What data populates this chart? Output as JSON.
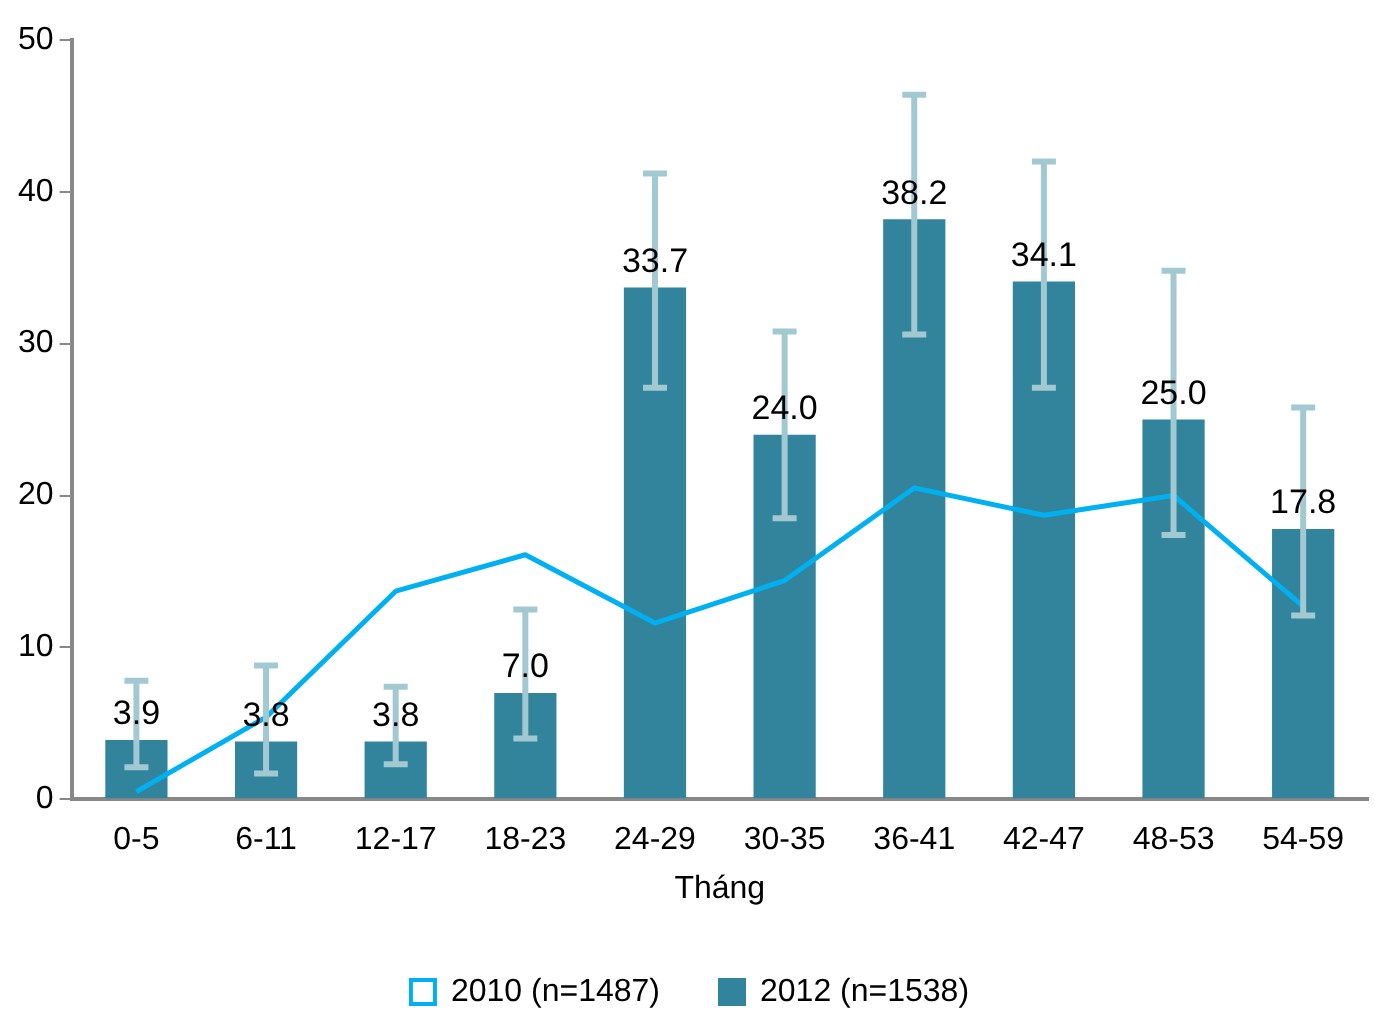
{
  "chart_data": {
    "type": "bar",
    "xlabel": "Tháng",
    "categories": [
      "0-5",
      "6-11",
      "12-17",
      "18-23",
      "24-29",
      "30-35",
      "36-41",
      "42-47",
      "48-53",
      "54-59"
    ],
    "series": [
      {
        "name": "2010 (n=1487)",
        "type": "line",
        "color": "#00b0f0",
        "values": [
          0.5,
          5.4,
          13.7,
          16.1,
          11.6,
          14.4,
          20.5,
          18.7,
          20.0,
          12.7
        ]
      },
      {
        "name": "2012 (n=1538)",
        "color": "#31849b",
        "values": [
          3.9,
          3.8,
          3.8,
          7.0,
          33.7,
          24.0,
          38.2,
          34.1,
          25.0,
          17.8
        ],
        "value_labels": [
          "3.9",
          "3.8",
          "3.8",
          "7.0",
          "33.7",
          "24.0",
          "38.2",
          "34.1",
          "25.0",
          "17.8"
        ],
        "errors": [
          [
            2.1,
            7.8
          ],
          [
            1.7,
            8.8
          ],
          [
            2.3,
            7.4
          ],
          [
            4.0,
            12.5
          ],
          [
            27.1,
            41.2
          ],
          [
            18.5,
            30.8
          ],
          [
            30.6,
            46.4
          ],
          [
            27.1,
            42.0
          ],
          [
            17.4,
            34.8
          ],
          [
            12.1,
            25.8
          ]
        ]
      }
    ],
    "ylim": [
      0,
      50
    ],
    "yticks": [
      0,
      10,
      20,
      30,
      40,
      50
    ],
    "grid": false,
    "legend": "bottom",
    "marker": "none",
    "line_style": "solid"
  }
}
